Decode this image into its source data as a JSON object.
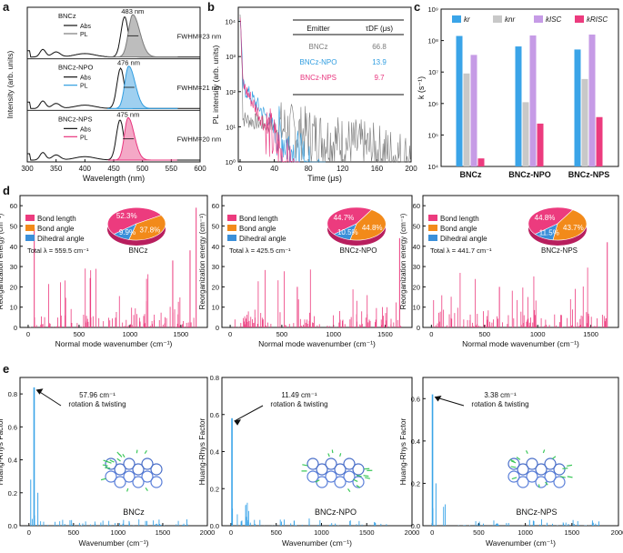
{
  "colors": {
    "abs": "#111111",
    "bnc_pl": "#7a7a7a",
    "bnc_fill": "#bdbdbd",
    "npo": "#2f9de0",
    "npo_fill": "#9fd0f0",
    "nps": "#e8357e",
    "nps_fill": "#f4a8c6",
    "kr": "#3aa4e8",
    "knr": "#c8c8c8",
    "kisc": "#c69be6",
    "krisc": "#ec3b7e",
    "pie_len": "#ec3b7e",
    "pie_ang": "#f28a1a",
    "pie_dih": "#3a8fd9"
  },
  "panel_labels": [
    "a",
    "b",
    "c",
    "d",
    "e"
  ],
  "panel_a": {
    "ylabel": "Intensity (arb. units)",
    "xlabel": "Wavelength (nm)",
    "xticks": [
      "300",
      "350",
      "400",
      "450",
      "500",
      "550",
      "600"
    ],
    "legend": {
      "abs": "Abs",
      "pl": "PL"
    },
    "rows": [
      {
        "name": "BNCz",
        "peak": "483 nm",
        "fwhm": "FWHM=23 nm"
      },
      {
        "name": "BNCz-NPO",
        "peak": "476 nm",
        "fwhm": "FWHM=21 nm"
      },
      {
        "name": "BNCz-NPS",
        "peak": "475 nm",
        "fwhm": "FWHM=20 nm"
      }
    ]
  },
  "panel_b": {
    "ylabel": "PL intensity (arb. units)",
    "xlabel": "Time (μs)",
    "xticks": [
      "0",
      "40",
      "80",
      "120",
      "160",
      "200"
    ],
    "yticks": [
      "10⁰",
      "10¹",
      "10²",
      "10³",
      "10⁴"
    ],
    "table": {
      "h1": "Emitter",
      "h2": "τDF (μs)",
      "rows": [
        [
          "BNCz",
          "66.8"
        ],
        [
          "BNCz-NPO",
          "13.9"
        ],
        [
          "BNCz-NPS",
          "9.7"
        ]
      ]
    }
  },
  "chart_data": [
    {
      "type": "bar",
      "title": "c",
      "ylabel": "k (s⁻¹)",
      "yscale": "log",
      "ylim": [
        10000,
        1000000000
      ],
      "categories": [
        "BNCz",
        "BNCz-NPO",
        "BNCz-NPS"
      ],
      "legend": [
        "kr",
        "knr",
        "kISC",
        "kRISC"
      ],
      "series": [
        {
          "name": "kr",
          "values": [
            140000000.0,
            65000000.0,
            52000000.0
          ]
        },
        {
          "name": "knr",
          "values": [
            9000000.0,
            1100000.0,
            6000000.0
          ]
        },
        {
          "name": "kISC",
          "values": [
            35000000.0,
            145000000.0,
            155000000.0
          ]
        },
        {
          "name": "kRISC",
          "values": [
            18000.0,
            230000.0,
            370000.0
          ]
        }
      ]
    },
    {
      "type": "bar",
      "title": "d",
      "ylabel": "Reorganization energy (cm⁻¹)",
      "xlabel": "Normal mode wavenumber (cm⁻¹)",
      "panels": [
        {
          "name": "BNCz",
          "total": "Total λ = 559.5 cm⁻¹",
          "pie": [
            52.3,
            37.8,
            9.9
          ],
          "pie_labels": [
            "52.3%",
            "37.8%",
            "9.9%"
          ]
        },
        {
          "name": "BNCz-NPO",
          "total": "Total λ = 425.5 cm⁻¹",
          "pie": [
            44.7,
            44.8,
            10.5
          ],
          "pie_labels": [
            "44.7%",
            "44.8%",
            "10.5%"
          ]
        },
        {
          "name": "BNCz-NPS",
          "total": "Total λ = 441.7 cm⁻¹",
          "pie": [
            44.8,
            43.7,
            11.5
          ],
          "pie_labels": [
            "44.8%",
            "43.7%",
            "11.5%"
          ]
        }
      ],
      "legend": [
        "Bond length",
        "Bond angle",
        "Dihedral angle"
      ],
      "xticks": [
        "0",
        "500",
        "1000",
        "1500"
      ],
      "yticks": [
        "0",
        "10",
        "20",
        "30",
        "40",
        "50",
        "60"
      ],
      "ylim": [
        0,
        65
      ],
      "xlim": [
        -80,
        1760
      ]
    },
    {
      "type": "bar",
      "title": "e",
      "ylabel": "Huang-Rhys Factor",
      "xlabel": "Wavenumber (cm⁻¹)",
      "panels": [
        {
          "name": "BNCz",
          "ann1": "57.96 cm⁻¹",
          "ann2": "rotation & twisting",
          "peak": [
            58,
            0.84
          ],
          "ylim": [
            0,
            0.9
          ],
          "yticks": [
            "0.0",
            "0.2",
            "0.4",
            "0.6",
            "0.8"
          ]
        },
        {
          "name": "BNCz-NPO",
          "ann1": "11.49 cm⁻¹",
          "ann2": "rotation & twisting",
          "peak": [
            11,
            0.58
          ],
          "ylim": [
            0,
            0.8
          ],
          "yticks": [
            "0.0",
            "0.2",
            "0.4",
            "0.6",
            "0.8"
          ]
        },
        {
          "name": "BNCz-NPS",
          "ann1": "3.38 cm⁻¹",
          "ann2": "rotation & twisting",
          "peak": [
            3,
            0.62
          ],
          "ylim": [
            0,
            0.7
          ],
          "yticks": [
            "0.0",
            "0.2",
            "0.4",
            "0.6"
          ]
        }
      ],
      "xticks": [
        "0",
        "500",
        "1000",
        "1500",
        "2000"
      ],
      "xlim": [
        -100,
        2000
      ]
    }
  ]
}
